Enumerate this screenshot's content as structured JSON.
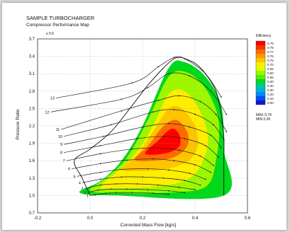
{
  "chart_data": {
    "type": "contour",
    "title": "SAMPLE TURBOCHARGER",
    "subtitle": "Compressor Performance Map",
    "units_note": "x 0.0",
    "xlabel": "Corrected Mass Flow  [kg/s]",
    "ylabel": "Pressure Ratio",
    "xlim": [
      -0.2,
      0.6
    ],
    "ylim": [
      0.7,
      3.7
    ],
    "x_ticks": [
      -0.2,
      0.0,
      0.2,
      0.4,
      0.6
    ],
    "x_tick_labels": [
      "-0.2",
      "0.0",
      "0.2",
      "0.4",
      "0.6"
    ],
    "y_ticks": [
      0.7,
      1.0,
      1.3,
      1.6,
      1.9,
      2.2,
      2.5,
      2.8,
      3.1,
      3.4,
      3.7
    ],
    "y_tick_labels": [
      "0.7",
      "1.0",
      "1.3",
      "1.6",
      "1.9",
      "2.2",
      "2.5",
      "2.8",
      "3.1",
      "3.4",
      "3.7"
    ],
    "grid": true,
    "legend": {
      "title": "Efficiency",
      "placement": "right",
      "levels": [
        "0.79",
        "0.78",
        "0.77",
        "0.76",
        "0.75",
        "0.70",
        "0.65",
        "0.60",
        "0.55",
        "0.50",
        "0.40",
        "0.30",
        "0.20",
        "0.10",
        "0.00"
      ],
      "colors": [
        "#ff0000",
        "#ff3000",
        "#ff6a00",
        "#ff9900",
        "#ffc400",
        "#ffee00",
        "#ddff00",
        "#9cf700",
        "#55ee00",
        "#00d81c",
        "#00c98c",
        "#00b4d8",
        "#0088ff",
        "#0050f0",
        "#1414c8"
      ],
      "max_label": "MAX  0.79",
      "min_label": "MIN  0.00"
    },
    "speed_lines": [
      {
        "label": "1",
        "points": [
          [
            0.0,
            1.0
          ],
          [
            0.02,
            1.01
          ],
          [
            0.06,
            1.04
          ],
          [
            0.1,
            1.05
          ],
          [
            0.16,
            1.05
          ],
          [
            0.24,
            1.04
          ],
          [
            0.3,
            1.02
          ]
        ]
      },
      {
        "label": "2",
        "points": [
          [
            -0.01,
            1.05
          ],
          [
            0.03,
            1.09
          ],
          [
            0.08,
            1.11
          ],
          [
            0.14,
            1.11
          ],
          [
            0.22,
            1.1
          ],
          [
            0.3,
            1.08
          ],
          [
            0.36,
            1.05
          ]
        ]
      },
      {
        "label": "3",
        "points": [
          [
            -0.02,
            1.12
          ],
          [
            0.04,
            1.18
          ],
          [
            0.1,
            1.2
          ],
          [
            0.18,
            1.2
          ],
          [
            0.26,
            1.18
          ],
          [
            0.34,
            1.14
          ],
          [
            0.4,
            1.1
          ]
        ]
      },
      {
        "label": "4",
        "points": [
          [
            -0.03,
            1.22
          ],
          [
            0.04,
            1.28
          ],
          [
            0.12,
            1.32
          ],
          [
            0.2,
            1.32
          ],
          [
            0.28,
            1.3
          ],
          [
            0.36,
            1.26
          ],
          [
            0.42,
            1.18
          ]
        ]
      },
      {
        "label": "5",
        "points": [
          [
            -0.05,
            1.33
          ],
          [
            0.04,
            1.4
          ],
          [
            0.12,
            1.45
          ],
          [
            0.22,
            1.46
          ],
          [
            0.3,
            1.44
          ],
          [
            0.38,
            1.38
          ],
          [
            0.44,
            1.28
          ]
        ]
      },
      {
        "label": "6",
        "points": [
          [
            -0.07,
            1.46
          ],
          [
            0.04,
            1.55
          ],
          [
            0.14,
            1.61
          ],
          [
            0.24,
            1.63
          ],
          [
            0.32,
            1.6
          ],
          [
            0.4,
            1.53
          ],
          [
            0.46,
            1.4
          ]
        ]
      },
      {
        "label": "7",
        "points": [
          [
            -0.09,
            1.6
          ],
          [
            0.04,
            1.72
          ],
          [
            0.16,
            1.8
          ],
          [
            0.26,
            1.82
          ],
          [
            0.34,
            1.78
          ],
          [
            0.42,
            1.68
          ],
          [
            0.47,
            1.52
          ]
        ]
      },
      {
        "label": "8",
        "points": [
          [
            -0.1,
            1.74
          ],
          [
            0.04,
            1.86
          ],
          [
            0.18,
            1.98
          ],
          [
            0.28,
            2.02
          ],
          [
            0.36,
            1.98
          ],
          [
            0.44,
            1.86
          ],
          [
            0.49,
            1.66
          ]
        ]
      },
      {
        "label": "9",
        "points": [
          [
            -0.1,
            1.88
          ],
          [
            0.05,
            2.02
          ],
          [
            0.2,
            2.18
          ],
          [
            0.3,
            2.24
          ],
          [
            0.38,
            2.18
          ],
          [
            0.46,
            2.04
          ],
          [
            0.5,
            1.82
          ]
        ]
      },
      {
        "label": "10",
        "points": [
          [
            -0.1,
            2.02
          ],
          [
            0.08,
            2.22
          ],
          [
            0.24,
            2.44
          ],
          [
            0.32,
            2.48
          ],
          [
            0.4,
            2.4
          ],
          [
            0.47,
            2.22
          ],
          [
            0.51,
            1.96
          ]
        ]
      },
      {
        "label": "11",
        "points": [
          [
            -0.11,
            2.14
          ],
          [
            0.12,
            2.46
          ],
          [
            0.26,
            2.64
          ],
          [
            0.34,
            2.72
          ],
          [
            0.42,
            2.62
          ],
          [
            0.48,
            2.4
          ],
          [
            0.52,
            2.1
          ]
        ]
      },
      {
        "label": "12",
        "points": [
          [
            -0.15,
            2.44
          ],
          [
            0.12,
            2.66
          ],
          [
            0.22,
            2.86
          ],
          [
            0.3,
            3.1
          ],
          [
            0.38,
            3.06
          ],
          [
            0.46,
            2.8
          ],
          [
            0.52,
            2.4
          ]
        ]
      },
      {
        "label": "13",
        "points": [
          [
            -0.13,
            2.68
          ],
          [
            0.16,
            2.94
          ],
          [
            0.26,
            3.22
          ],
          [
            0.32,
            3.38
          ],
          [
            0.36,
            3.36
          ],
          [
            0.44,
            3.1
          ],
          [
            0.5,
            2.7
          ]
        ]
      }
    ],
    "surge_line": [
      [
        0.0,
        1.0
      ],
      [
        -0.03,
        1.3
      ],
      [
        -0.06,
        1.6
      ],
      [
        0.0,
        1.8
      ],
      [
        0.08,
        2.1
      ],
      [
        0.16,
        2.55
      ],
      [
        0.22,
        2.9
      ],
      [
        0.28,
        3.2
      ],
      [
        0.32,
        3.36
      ],
      [
        0.35,
        3.38
      ]
    ],
    "choke_line": [
      [
        0.35,
        3.38
      ],
      [
        0.4,
        3.28
      ],
      [
        0.44,
        3.1
      ],
      [
        0.48,
        2.8
      ],
      [
        0.5,
        2.4
      ],
      [
        0.51,
        2.0
      ],
      [
        0.51,
        1.6
      ],
      [
        0.51,
        1.2
      ],
      [
        0.51,
        1.0
      ]
    ],
    "efficiency_regions": [
      {
        "level": "0.50",
        "points": [
          [
            -0.04,
            1.05
          ],
          [
            0.04,
            1.25
          ],
          [
            0.12,
            1.6
          ],
          [
            0.2,
            2.2
          ],
          [
            0.3,
            3.2
          ],
          [
            0.36,
            3.3
          ],
          [
            0.44,
            3.05
          ],
          [
            0.5,
            2.55
          ],
          [
            0.51,
            1.8
          ],
          [
            0.51,
            1.0
          ],
          [
            0.1,
            1.0
          ]
        ]
      },
      {
        "level": "0.60",
        "points": [
          [
            0.0,
            1.08
          ],
          [
            0.06,
            1.3
          ],
          [
            0.14,
            1.65
          ],
          [
            0.22,
            2.3
          ],
          [
            0.3,
            3.05
          ],
          [
            0.37,
            3.12
          ],
          [
            0.44,
            2.85
          ],
          [
            0.49,
            2.3
          ],
          [
            0.48,
            1.6
          ],
          [
            0.44,
            1.15
          ],
          [
            0.3,
            1.05
          ],
          [
            0.12,
            1.04
          ]
        ]
      },
      {
        "level": "0.70",
        "points": [
          [
            0.04,
            1.15
          ],
          [
            0.1,
            1.4
          ],
          [
            0.17,
            1.7
          ],
          [
            0.24,
            2.2
          ],
          [
            0.3,
            2.75
          ],
          [
            0.36,
            2.8
          ],
          [
            0.42,
            2.45
          ],
          [
            0.45,
            1.95
          ],
          [
            0.42,
            1.5
          ],
          [
            0.36,
            1.25
          ],
          [
            0.24,
            1.15
          ],
          [
            0.1,
            1.12
          ]
        ]
      },
      {
        "level": "0.75",
        "points": [
          [
            0.12,
            1.45
          ],
          [
            0.18,
            1.7
          ],
          [
            0.24,
            2.1
          ],
          [
            0.3,
            2.5
          ],
          [
            0.35,
            2.5
          ],
          [
            0.4,
            2.2
          ],
          [
            0.41,
            1.85
          ],
          [
            0.37,
            1.58
          ],
          [
            0.28,
            1.45
          ],
          [
            0.18,
            1.42
          ]
        ]
      },
      {
        "level": "0.77",
        "points": [
          [
            0.17,
            1.62
          ],
          [
            0.22,
            1.85
          ],
          [
            0.28,
            2.2
          ],
          [
            0.33,
            2.3
          ],
          [
            0.37,
            2.1
          ],
          [
            0.37,
            1.85
          ],
          [
            0.32,
            1.66
          ],
          [
            0.24,
            1.6
          ]
        ]
      },
      {
        "level": "0.79",
        "points": [
          [
            0.21,
            1.72
          ],
          [
            0.26,
            1.95
          ],
          [
            0.31,
            2.15
          ],
          [
            0.34,
            2.05
          ],
          [
            0.34,
            1.85
          ],
          [
            0.29,
            1.73
          ]
        ]
      }
    ]
  }
}
